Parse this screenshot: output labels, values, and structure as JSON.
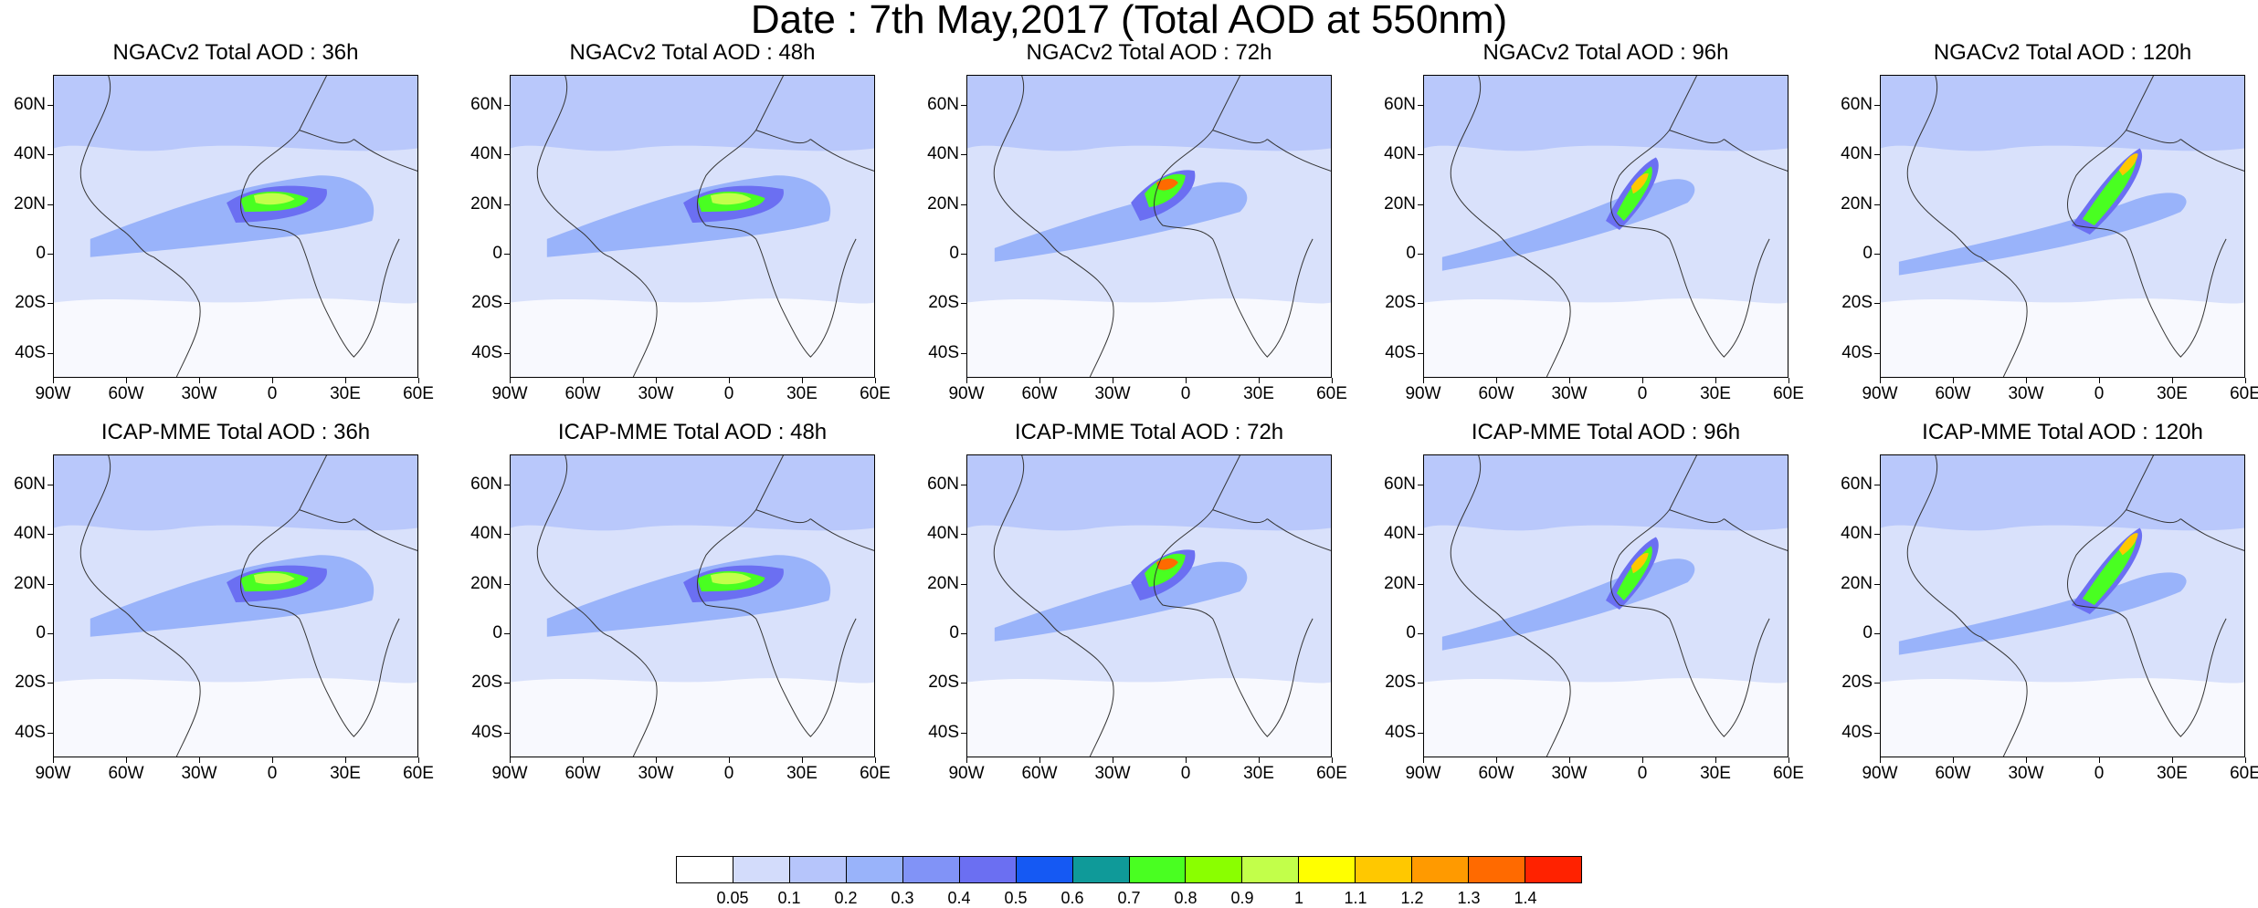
{
  "title": "Date : 7th May,2017 (Total AOD at 550nm)",
  "rows": [
    {
      "panels": [
        {
          "title": "NGACv2 Total AOD : 36h",
          "plume": "west-sahel"
        },
        {
          "title": "NGACv2 Total AOD : 48h",
          "plume": "west-sahel"
        },
        {
          "title": "NGACv2 Total AOD : 72h",
          "plume": "north-west"
        },
        {
          "title": "NGACv2 Total AOD : 96h",
          "plume": "north-band"
        },
        {
          "title": "NGACv2 Total AOD : 120h",
          "plume": "med-band"
        }
      ]
    },
    {
      "panels": [
        {
          "title": "ICAP-MME Total AOD : 36h",
          "plume": "west-sahel"
        },
        {
          "title": "ICAP-MME Total AOD : 48h",
          "plume": "west-sahel"
        },
        {
          "title": "ICAP-MME Total AOD : 72h",
          "plume": "north-west"
        },
        {
          "title": "ICAP-MME Total AOD : 96h",
          "plume": "north-band"
        },
        {
          "title": "ICAP-MME Total AOD : 120h",
          "plume": "med-band"
        }
      ]
    }
  ],
  "lat_ticks": [
    "60N",
    "40N",
    "20N",
    "0",
    "20S",
    "40S"
  ],
  "lon_ticks": [
    "90W",
    "60W",
    "30W",
    "0",
    "30E",
    "60E"
  ],
  "colorbar": {
    "labels": [
      "0.05",
      "0.1",
      "0.2",
      "0.3",
      "0.4",
      "0.5",
      "0.6",
      "0.7",
      "0.8",
      "0.9",
      "1",
      "1.1",
      "1.2",
      "1.3",
      "1.4"
    ],
    "colors": [
      "#ffffff",
      "#d3dcfb",
      "#b6c5fb",
      "#99b3fa",
      "#8193f7",
      "#6b6ff2",
      "#1559f3",
      "#0f9a99",
      "#49ff21",
      "#8aff00",
      "#c2ff4a",
      "#ffff00",
      "#ffc800",
      "#ff9a00",
      "#ff6a00",
      "#ff2200"
    ]
  },
  "map_colors": {
    "ocean_low": "#d9e1fb",
    "ocean_mid": "#b9c8fb",
    "land": "#c7d2fb",
    "clear": "#ffffff",
    "coast": "#333333"
  }
}
